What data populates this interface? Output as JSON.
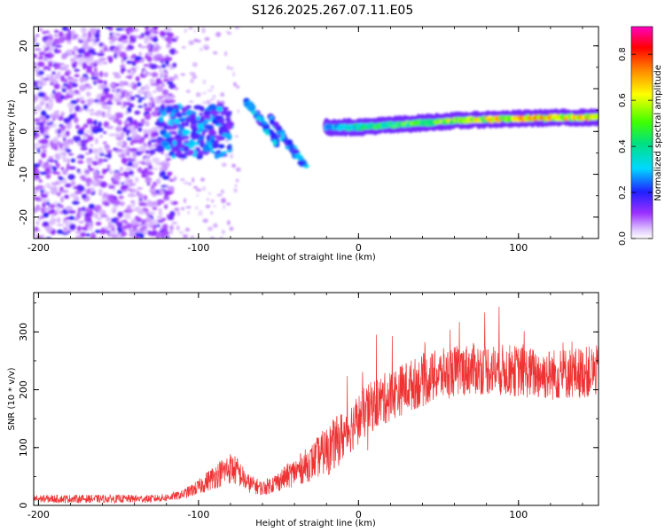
{
  "chart_data": [
    {
      "type": "heatmap",
      "title": "S126.2025.267.07.11.E05",
      "xlabel": "Height of straight line (km)",
      "ylabel": "Frequency (Hz)",
      "xlim": [
        -203,
        150
      ],
      "ylim": [
        -25,
        24.5
      ],
      "xticks": [
        -200,
        -100,
        0,
        100
      ],
      "xtick_labels": [
        "-200",
        "-100",
        "0",
        "100"
      ],
      "yticks": [
        -20,
        -10,
        0,
        10,
        20
      ],
      "ytick_labels": [
        "-20",
        "-10",
        "0",
        "10",
        "20"
      ],
      "colorbar": {
        "label": "Normalized spectral amplitude",
        "range": [
          0.0,
          0.92
        ],
        "ticks": [
          0.0,
          0.2,
          0.4,
          0.6,
          0.8
        ],
        "tick_labels": [
          "0.0",
          "0.2",
          "0.4",
          "0.6",
          "0.8"
        ]
      },
      "features": [
        {
          "name": "noise-region",
          "x_range": [
            -203,
            -115
          ],
          "freq_range": [
            -25,
            24.5
          ],
          "amplitude": 0.15
        },
        {
          "name": "tail-blob",
          "x_range": [
            -125,
            -80
          ],
          "freq_range": [
            -6,
            6
          ],
          "amplitude": 0.3
        },
        {
          "name": "chirp-a",
          "x_from": -70,
          "x_to": -50,
          "freq_from": 7,
          "freq_to": -3,
          "amplitude": 0.3
        },
        {
          "name": "chirp-b",
          "x_from": -55,
          "x_to": -32,
          "freq_from": 3,
          "freq_to": -9,
          "amplitude": 0.3
        },
        {
          "name": "carrier-line",
          "x": [
            -20,
            0,
            20,
            40,
            60,
            80,
            100,
            120,
            150
          ],
          "freq": [
            1.0,
            1.0,
            1.5,
            2.0,
            2.5,
            2.8,
            3.0,
            3.2,
            3.3
          ],
          "amplitude": [
            0.3,
            0.45,
            0.55,
            0.6,
            0.7,
            0.75,
            0.78,
            0.8,
            0.8
          ]
        }
      ]
    },
    {
      "type": "line",
      "xlabel": "Height of straight line (km)",
      "ylabel": "SNR (10 * v/v)",
      "xlim": [
        -203,
        150
      ],
      "ylim": [
        0,
        368
      ],
      "xticks": [
        -200,
        -100,
        0,
        100
      ],
      "xtick_labels": [
        "-200",
        "-100",
        "0",
        "100"
      ],
      "yticks": [
        0,
        100,
        200,
        300
      ],
      "ytick_labels": [
        "0",
        "100",
        "200",
        "300"
      ],
      "color": "#ee3333",
      "series": [
        {
          "name": "SNR",
          "x": [
            -203,
            -190,
            -170,
            -150,
            -130,
            -120,
            -110,
            -100,
            -90,
            -80,
            -75,
            -70,
            -60,
            -50,
            -40,
            -30,
            -20,
            -10,
            0,
            10,
            20,
            30,
            40,
            50,
            60,
            70,
            80,
            90,
            100,
            110,
            120,
            130,
            140,
            150
          ],
          "values": [
            10,
            10,
            10,
            10,
            10,
            12,
            18,
            30,
            48,
            62,
            55,
            38,
            28,
            40,
            55,
            70,
            92,
            120,
            150,
            175,
            190,
            205,
            215,
            225,
            232,
            236,
            236,
            234,
            232,
            228,
            226,
            228,
            230,
            232
          ]
        }
      ]
    }
  ]
}
